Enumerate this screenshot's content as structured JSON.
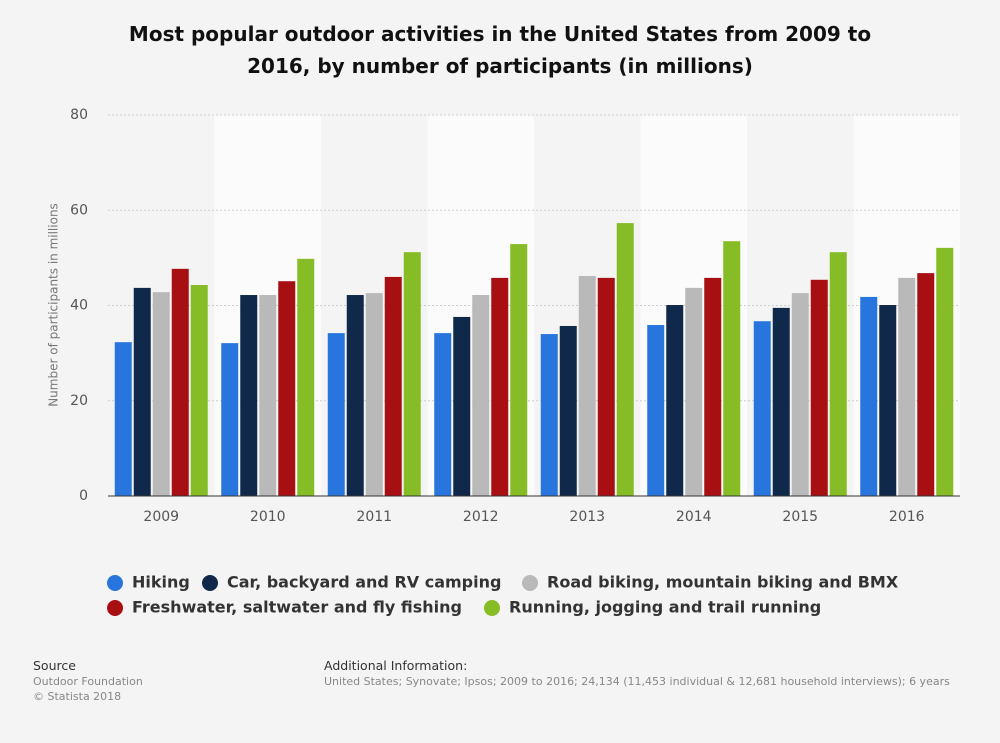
{
  "chart_data": {
    "type": "bar",
    "title": "Most popular outdoor activities in the United States from 2009 to 2016, by number of participants (in millions)",
    "y_label": "Number of participants in millions",
    "categories": [
      "2009",
      "2010",
      "2011",
      "2012",
      "2013",
      "2014",
      "2015",
      "2016"
    ],
    "series": [
      {
        "name": "Hiking",
        "color": "#2876dd",
        "values": [
          32.3,
          32.1,
          34.2,
          34.2,
          34.0,
          35.9,
          36.7,
          41.8
        ]
      },
      {
        "name": "Car, backyard and RV camping",
        "color": "#10294a",
        "values": [
          43.7,
          42.2,
          42.2,
          37.6,
          35.7,
          40.1,
          39.5,
          40.1
        ]
      },
      {
        "name": "Road biking, mountain biking and BMX",
        "color": "#b9b9b9",
        "values": [
          42.8,
          42.2,
          42.6,
          42.2,
          46.2,
          43.7,
          42.6,
          45.8
        ]
      },
      {
        "name": "Freshwater, saltwater and fly fishing",
        "color": "#a80f12",
        "values": [
          47.7,
          45.1,
          46.0,
          45.8,
          45.8,
          45.8,
          45.4,
          46.8
        ]
      },
      {
        "name": "Running, jogging and trail running",
        "color": "#86bc25",
        "values": [
          44.3,
          49.8,
          51.2,
          52.9,
          57.3,
          53.5,
          51.2,
          52.1
        ]
      }
    ],
    "ylim": [
      0,
      80
    ],
    "yticks": [
      0,
      20,
      40,
      60,
      80
    ],
    "grid": true
  },
  "footer": {
    "source_heading": "Source",
    "source": "Outdoor Foundation",
    "copyright": "© Statista 2018",
    "info_heading": "Additional Information:",
    "info": "United States; Synovate; Ipsos; 2009 to 2016; 24,134 (11,453 individual & 12,681 household interviews); 6 years"
  }
}
